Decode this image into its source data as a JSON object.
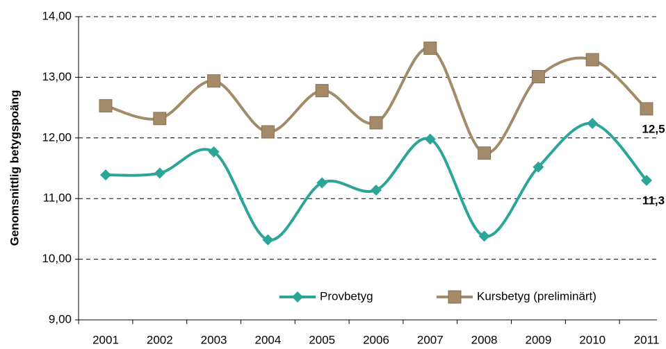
{
  "chart_data": {
    "type": "line",
    "y_label": "Genomsnittlig betygspoäng",
    "categories": [
      "2001",
      "2002",
      "2003",
      "2004",
      "2005",
      "2006",
      "2007",
      "2008",
      "2009",
      "2010",
      "2011"
    ],
    "series": [
      {
        "name": "Provbetyg",
        "color": "#2aa597",
        "marker": "diamond",
        "values": [
          11.39,
          11.42,
          11.77,
          10.32,
          11.26,
          11.14,
          11.98,
          10.38,
          11.52,
          12.24,
          11.3
        ],
        "value_labels": [
          null,
          null,
          null,
          null,
          null,
          null,
          null,
          null,
          null,
          null,
          "11,3"
        ]
      },
      {
        "name": "Kursbetyg (preliminärt)",
        "color": "#a38a68",
        "marker": "square",
        "values": [
          12.53,
          12.32,
          12.94,
          12.1,
          12.78,
          12.25,
          13.48,
          11.75,
          13.01,
          13.29,
          12.48
        ],
        "value_labels": [
          null,
          null,
          null,
          null,
          null,
          null,
          null,
          null,
          null,
          null,
          "12,5"
        ]
      }
    ],
    "ylim": [
      9,
      14
    ],
    "yticks": [
      {
        "value": 9,
        "label": "9,00"
      },
      {
        "value": 10,
        "label": "10,00"
      },
      {
        "value": 11,
        "label": "11,00"
      },
      {
        "value": 12,
        "label": "12,00"
      },
      {
        "value": 13,
        "label": "13,00"
      },
      {
        "value": 14,
        "label": "14,00"
      }
    ],
    "grid": true,
    "legend": "bottom",
    "smooth": true
  }
}
